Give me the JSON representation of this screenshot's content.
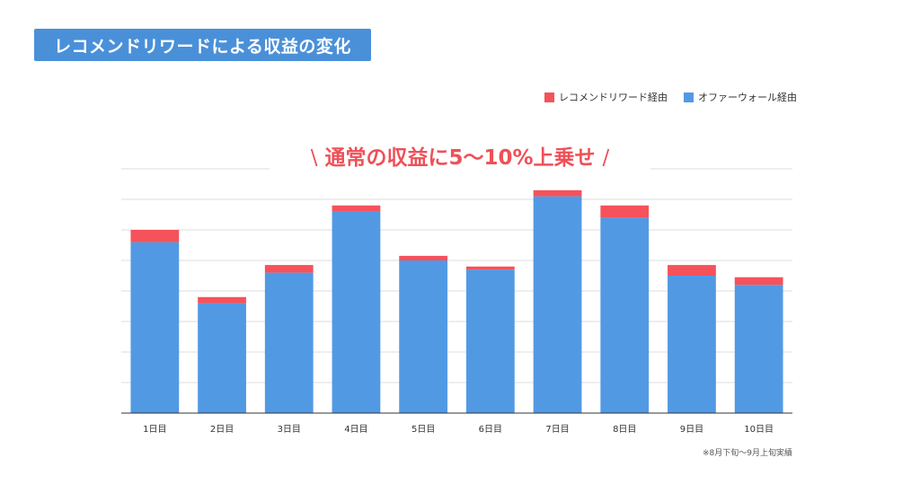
{
  "title": "レコメンドリワードによる収益の変化",
  "callout": {
    "slash_left": "\\",
    "text": "通常の収益に5〜10%上乗せ",
    "slash_right": "/"
  },
  "footnote": "※8月下旬〜9月上旬実績",
  "colors": {
    "recommend": "#f5525b",
    "offerwall": "#5299e4",
    "title_bg": "#4a90d9",
    "callout": "#ef5058",
    "grid": "#dcdcdc"
  },
  "chart_data": {
    "type": "bar",
    "stacked": true,
    "categories": [
      "1日目",
      "2日目",
      "3日目",
      "4日目",
      "5日目",
      "6日目",
      "7日目",
      "8日目",
      "9日目",
      "10日目"
    ],
    "series": [
      {
        "name": "オファーウォール経由",
        "color": "#5299e4",
        "values": [
          5.6,
          3.6,
          4.6,
          6.6,
          5.0,
          4.7,
          7.1,
          6.4,
          4.5,
          4.2
        ]
      },
      {
        "name": "レコメンドリワード経由",
        "color": "#f5525b",
        "values": [
          0.4,
          0.2,
          0.25,
          0.2,
          0.15,
          0.1,
          0.2,
          0.4,
          0.35,
          0.25
        ]
      }
    ],
    "legend_order": [
      "レコメンドリワード経由",
      "オファーウォール経由"
    ],
    "ylim": [
      0,
      8
    ],
    "y_gridlines": 8,
    "y_tick_labels_visible": false,
    "grid": true,
    "legend_position": "top-right"
  }
}
